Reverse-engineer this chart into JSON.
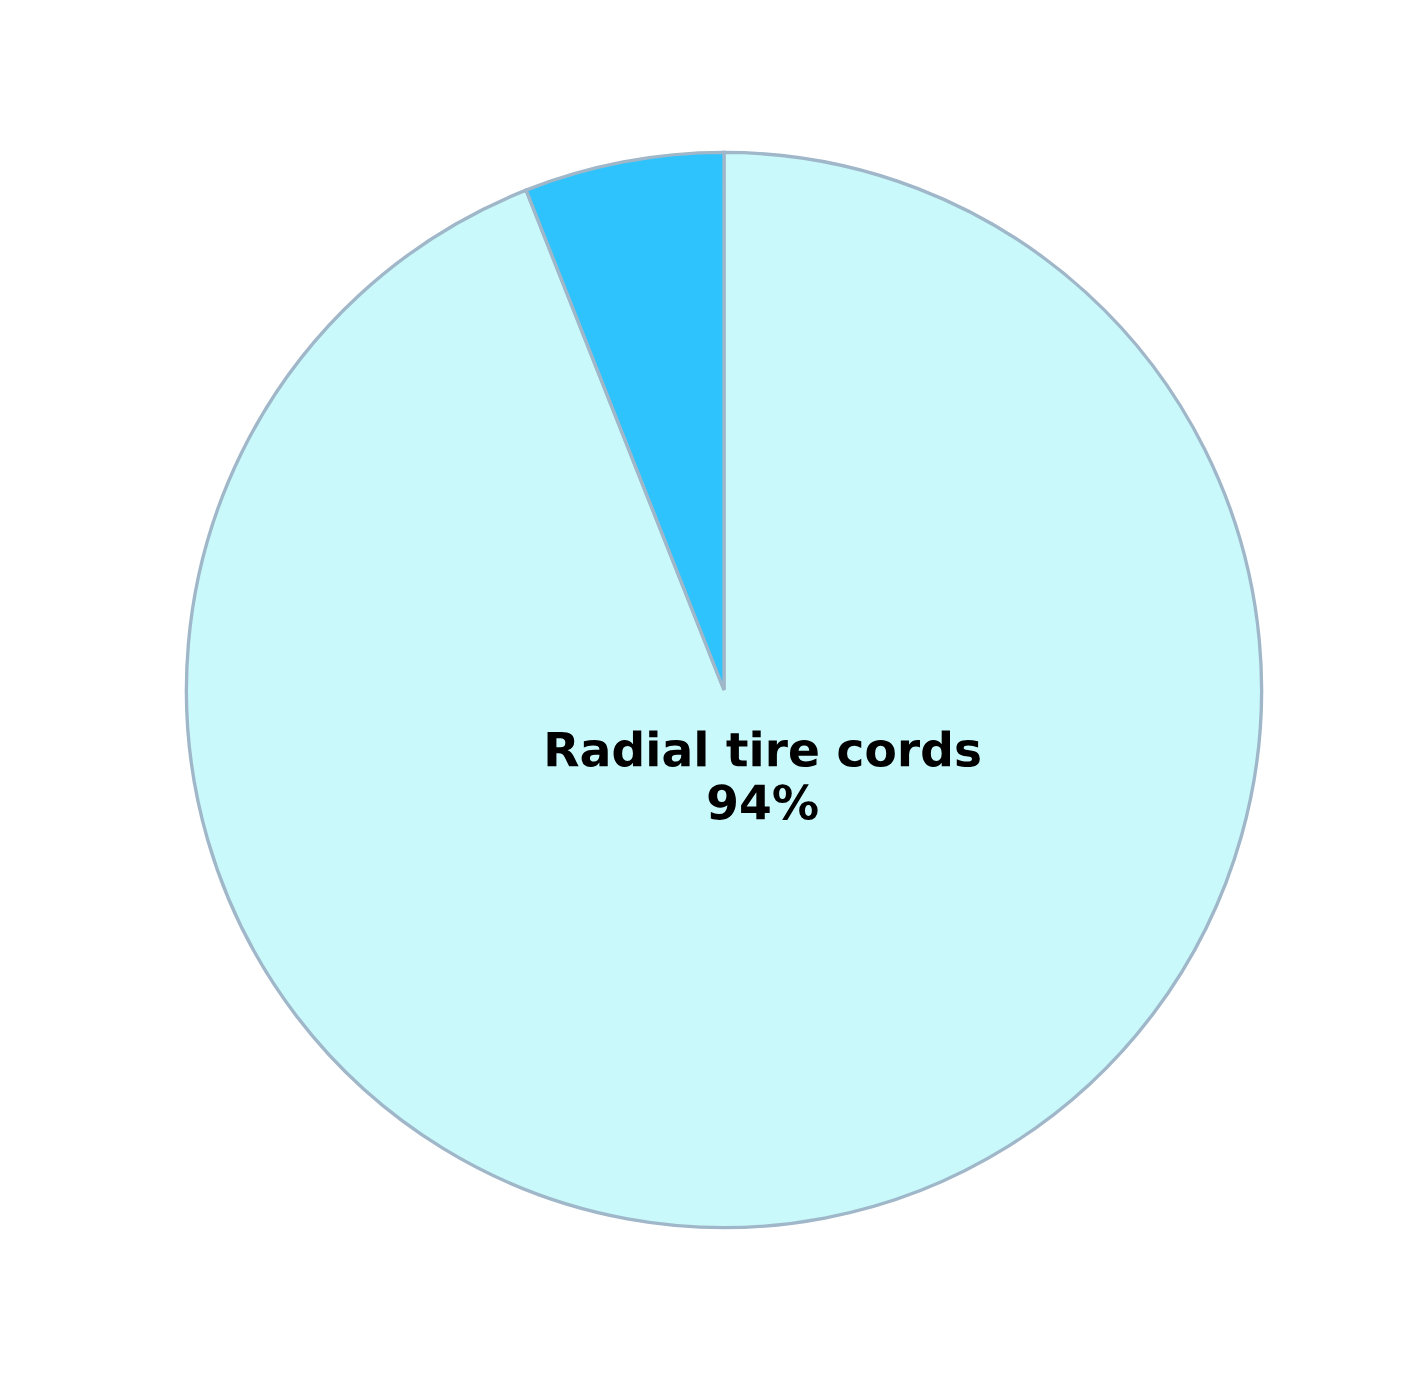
{
  "chart_data": {
    "type": "pie",
    "categories": [
      "Radial tire cords",
      null
    ],
    "values": [
      94,
      6
    ],
    "value_labels": [
      "94%",
      null
    ],
    "colors": [
      "#c9f9fb",
      "#2ec3fc"
    ]
  }
}
